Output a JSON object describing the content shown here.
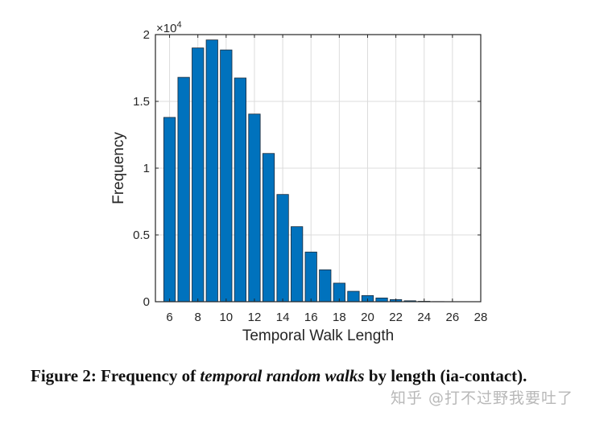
{
  "chart_data": {
    "type": "bar",
    "title": "",
    "xlabel": "Temporal Walk Length",
    "ylabel": "Frequency",
    "y_multiplier_label": "×10^4",
    "y_multiplier_base": "×10",
    "y_multiplier_exp": "4",
    "xlim": [
      5,
      28
    ],
    "ylim": [
      0,
      20000
    ],
    "grid": true,
    "x_ticks": [
      6,
      8,
      10,
      12,
      14,
      16,
      18,
      20,
      22,
      24,
      26,
      28
    ],
    "y_ticks": [
      0,
      5000,
      10000,
      15000,
      20000
    ],
    "y_tick_labels": [
      "0",
      "0.5",
      "1",
      "1.5",
      "2"
    ],
    "categories": [
      6,
      7,
      8,
      9,
      10,
      11,
      12,
      13,
      14,
      15,
      16,
      17,
      18,
      19,
      20,
      21,
      22,
      23,
      24,
      25,
      26,
      27
    ],
    "values": [
      13800,
      16800,
      19000,
      19600,
      18850,
      16750,
      14050,
      11100,
      8030,
      5620,
      3720,
      2390,
      1390,
      780,
      460,
      280,
      160,
      70,
      30,
      10,
      5,
      2
    ],
    "bar_color": "#0072BD",
    "bar_edge_color": "#1a2a3a"
  },
  "caption": {
    "prefix": "Figure 2: Frequency of ",
    "italic": "temporal random walks",
    "suffix": " by length (ia-contact)."
  },
  "watermark": "知乎 @打不过野我要吐了"
}
